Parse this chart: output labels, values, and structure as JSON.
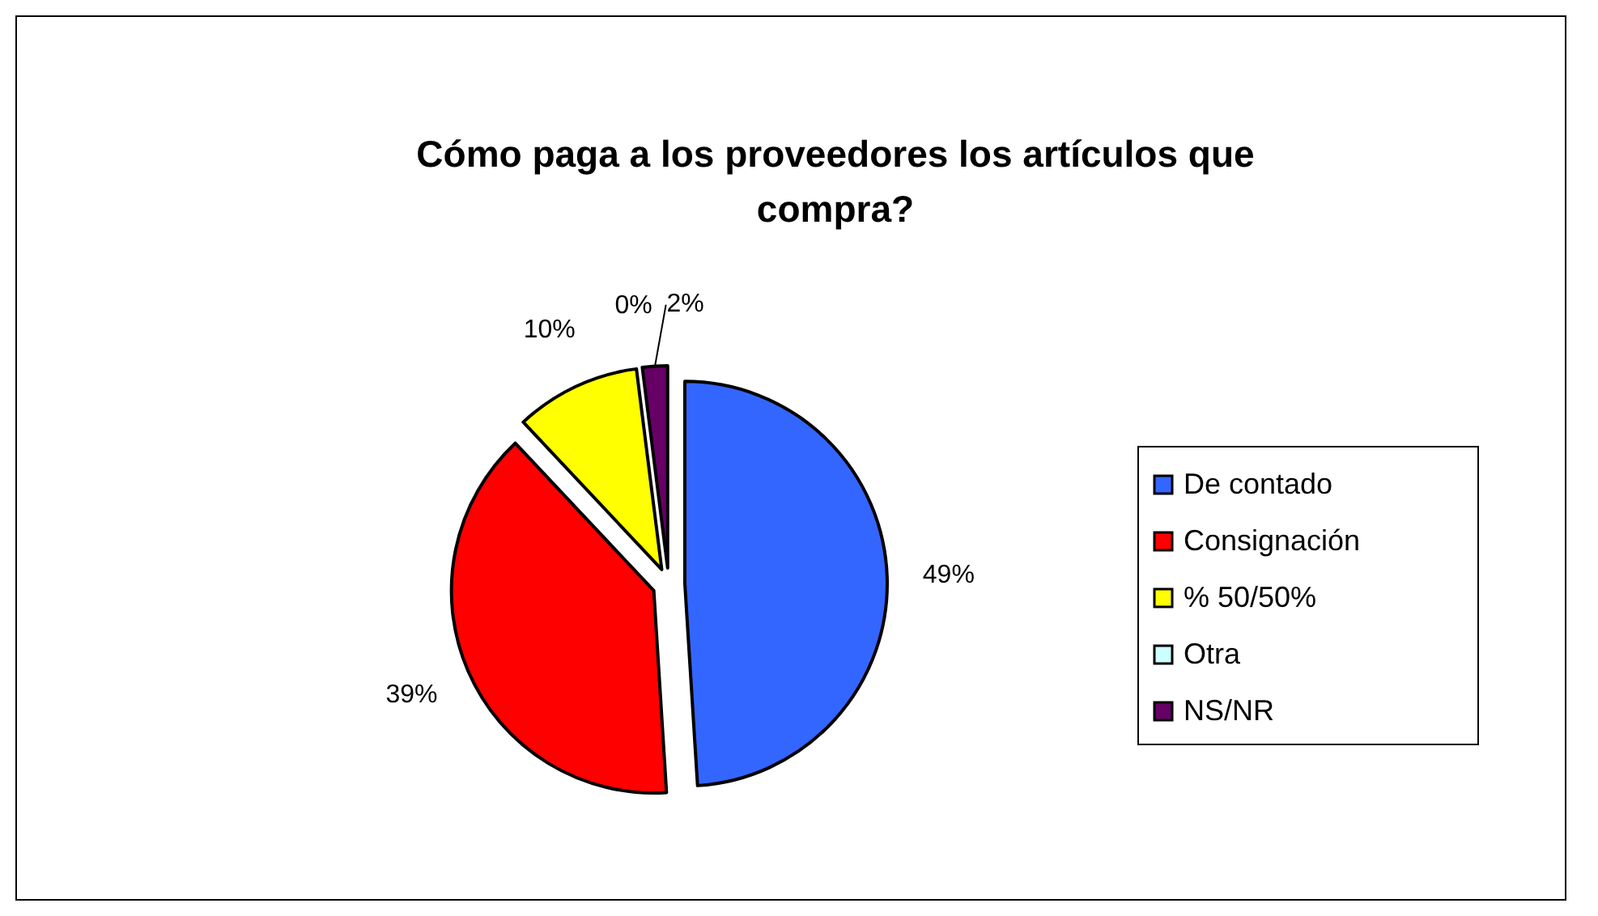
{
  "chart_data": {
    "type": "pie",
    "title": "Cómo paga a los proveedores los artículos que compra?",
    "categories": [
      "De contado",
      "Consignación",
      "% 50/50%",
      "Otra",
      "NS/NR"
    ],
    "values": [
      49,
      39,
      10,
      0,
      2
    ],
    "value_labels": [
      "49%",
      "39%",
      "10%",
      "0%",
      "2%"
    ],
    "colors": [
      "#3366ff",
      "#ff0000",
      "#ffff00",
      "#ccffff",
      "#660066"
    ],
    "legend": "right"
  }
}
